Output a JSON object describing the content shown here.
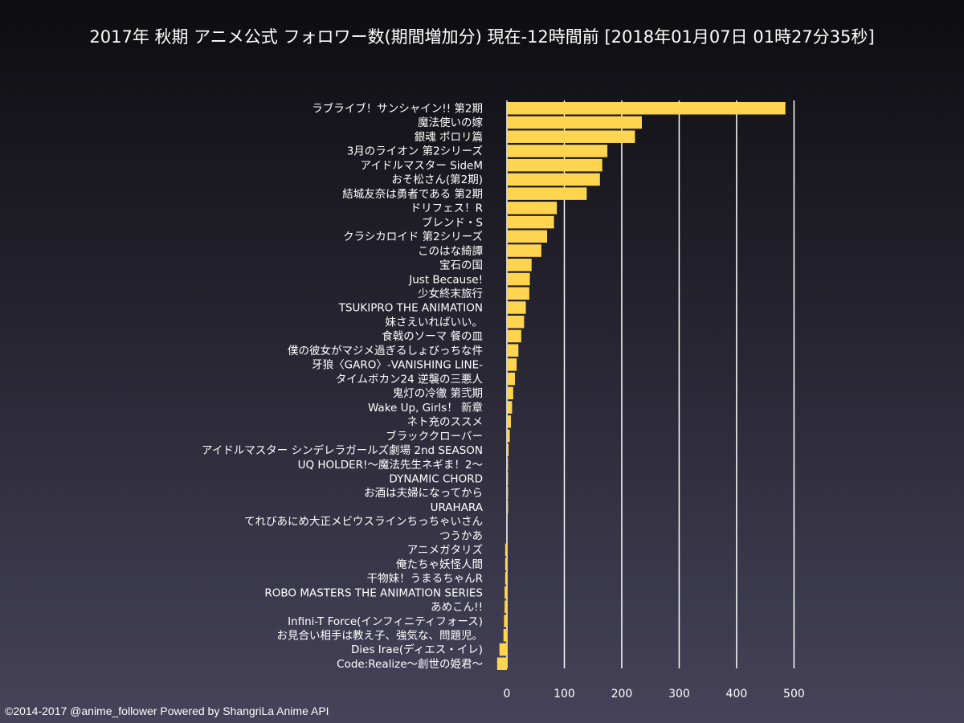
{
  "chart_data": {
    "type": "bar",
    "orientation": "horizontal",
    "title": "2017年 秋期 アニメ公式 フォロワー数(期間増加分) 現在-12時間前 [2018年01月07日 01時27分35秒]",
    "xlabel": "",
    "ylabel": "",
    "xlim": [
      0,
      500
    ],
    "x_ticks": [
      0,
      100,
      200,
      300,
      400,
      500
    ],
    "grid": true,
    "legend": "none",
    "bar_color": "#ffd54f",
    "categories": [
      "ラブライブ！サンシャイン!! 第2期",
      "魔法使いの嫁",
      "銀魂 ポロリ篇",
      "3月のライオン 第2シリーズ",
      "アイドルマスター SideM",
      "おそ松さん(第2期)",
      "結城友奈は勇者である 第2期",
      "ドリフェス！R",
      "ブレンド・S",
      "クラシカロイド 第2シリーズ",
      "このはな綺譚",
      "宝石の国",
      "Just Because!",
      "少女終末旅行",
      "TSUKIPRO THE ANIMATION",
      "妹さえいればいい。",
      "食戟のソーマ 餐の皿",
      "僕の彼女がマジメ過ぎるしょびっちな件",
      "牙狼〈GARO〉-VANISHING LINE-",
      "タイムボカン24 逆襲の三悪人",
      "鬼灯の冷徹 第弐期",
      "Wake Up, Girls！ 新章",
      "ネト充のススメ",
      "ブラッククローバー",
      "アイドルマスター シンデレラガールズ劇場 2nd SEASON",
      "UQ HOLDER!～魔法先生ネギま！2～",
      "DYNAMIC CHORD",
      "お酒は夫婦になってから",
      "URAHARA",
      "てれびあにめ大正メビウスラインちっちゃいさん",
      "つうかあ",
      "アニメガタリズ",
      "俺たちゃ妖怪人間",
      "干物妹！うまるちゃんR",
      "ROBO MASTERS THE ANIMATION SERIES",
      "あめこん!!",
      "Infini-T Force(インフィニティフォース)",
      "お見合い相手は教え子、強気な、問題児。",
      "Dies Irae(ディエス・イレ)",
      "Code:Realize～創世の姫君～"
    ],
    "values": [
      485,
      235,
      223,
      175,
      166,
      162,
      139,
      87,
      82,
      70,
      60,
      43,
      40,
      39,
      33,
      30,
      25,
      20,
      17,
      14,
      11,
      9,
      7,
      5,
      3,
      2,
      2,
      2,
      2,
      0,
      0,
      -3,
      -3,
      -3,
      -4,
      -4,
      -5,
      -6,
      -13,
      -17
    ]
  },
  "footer": {
    "credit": "©2014-2017 @anime_follower Powered by ShangriLa Anime API"
  }
}
